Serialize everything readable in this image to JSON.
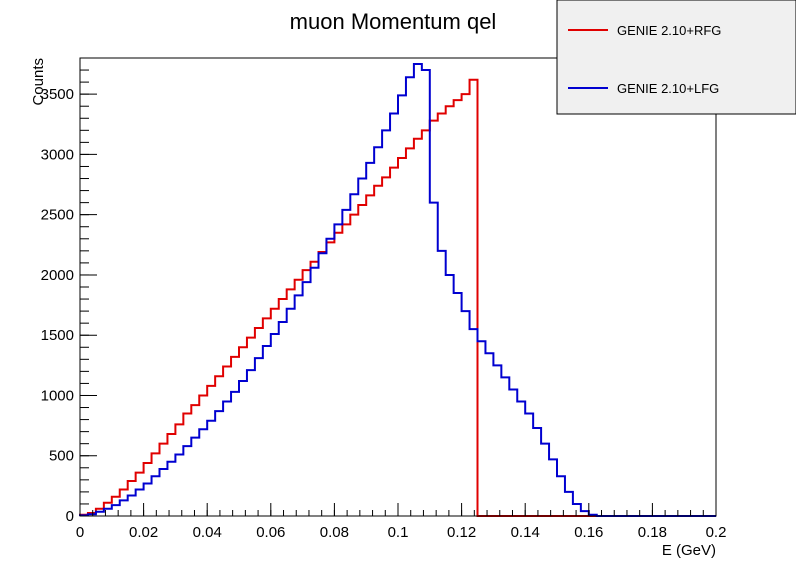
{
  "chart_data": {
    "type": "line",
    "title": "muon Momentum qel",
    "xlabel": "E (GeV)",
    "ylabel": "Counts",
    "xlim": [
      0,
      0.2
    ],
    "ylim": [
      0,
      3800
    ],
    "bin_width": 0.0025,
    "x_ticks": [
      "0",
      "0.02",
      "0.04",
      "0.06",
      "0.08",
      "0.1",
      "0.12",
      "0.14",
      "0.16",
      "0.18",
      "0.2"
    ],
    "y_ticks": [
      "0",
      "500",
      "1000",
      "1500",
      "2000",
      "2500",
      "3000",
      "3500"
    ],
    "grid": false,
    "legend_position": "top-right",
    "series": [
      {
        "name": "GENIE 2.10+RFG",
        "color": "#e00000",
        "x": [
          0.00125,
          0.00375,
          0.00625,
          0.00875,
          0.01125,
          0.01375,
          0.01625,
          0.01875,
          0.02125,
          0.02375,
          0.02625,
          0.02875,
          0.03125,
          0.03375,
          0.03625,
          0.03875,
          0.04125,
          0.04375,
          0.04625,
          0.04875,
          0.05125,
          0.05375,
          0.05625,
          0.05875,
          0.06125,
          0.06375,
          0.06625,
          0.06875,
          0.07125,
          0.07375,
          0.07625,
          0.07875,
          0.08125,
          0.08375,
          0.08625,
          0.08875,
          0.09125,
          0.09375,
          0.09625,
          0.09875,
          0.10125,
          0.10375,
          0.10625,
          0.10875,
          0.11125,
          0.11375,
          0.11625,
          0.11875,
          0.12125,
          0.12375,
          0.12625,
          0.12875,
          0.13125,
          0.13375,
          0.13625,
          0.13875,
          0.14125,
          0.14375,
          0.14625,
          0.14875,
          0.15125,
          0.15375,
          0.15625,
          0.15875,
          0.16125,
          0.16375,
          0.16625,
          0.16875,
          0.17125,
          0.17375,
          0.17625,
          0.17875,
          0.18125,
          0.18375,
          0.18625,
          0.18875,
          0.19125,
          0.19375,
          0.19625,
          0.19875
        ],
        "values": [
          10,
          25,
          60,
          110,
          160,
          220,
          290,
          360,
          440,
          520,
          600,
          680,
          760,
          850,
          920,
          1000,
          1080,
          1160,
          1240,
          1320,
          1400,
          1480,
          1560,
          1640,
          1720,
          1800,
          1880,
          1960,
          2040,
          2110,
          2190,
          2270,
          2350,
          2420,
          2500,
          2580,
          2660,
          2740,
          2810,
          2890,
          2970,
          3050,
          3130,
          3200,
          3280,
          3340,
          3400,
          3450,
          3500,
          3620,
          0,
          0,
          0,
          0,
          0,
          0,
          0,
          0,
          0,
          0,
          0,
          0,
          0,
          0,
          0,
          0,
          0,
          0,
          0,
          0,
          0,
          0,
          0,
          0,
          0,
          0,
          0,
          0,
          0,
          0
        ]
      },
      {
        "name": "GENIE 2.10+LFG",
        "color": "#0000d0",
        "x": [
          0.00125,
          0.00375,
          0.00625,
          0.00875,
          0.01125,
          0.01375,
          0.01625,
          0.01875,
          0.02125,
          0.02375,
          0.02625,
          0.02875,
          0.03125,
          0.03375,
          0.03625,
          0.03875,
          0.04125,
          0.04375,
          0.04625,
          0.04875,
          0.05125,
          0.05375,
          0.05625,
          0.05875,
          0.06125,
          0.06375,
          0.06625,
          0.06875,
          0.07125,
          0.07375,
          0.07625,
          0.07875,
          0.08125,
          0.08375,
          0.08625,
          0.08875,
          0.09125,
          0.09375,
          0.09625,
          0.09875,
          0.10125,
          0.10375,
          0.10625,
          0.10875,
          0.11125,
          0.11375,
          0.11625,
          0.11875,
          0.12125,
          0.12375,
          0.12625,
          0.12875,
          0.13125,
          0.13375,
          0.13625,
          0.13875,
          0.14125,
          0.14375,
          0.14625,
          0.14875,
          0.15125,
          0.15375,
          0.15625,
          0.15875,
          0.16125,
          0.16375,
          0.16625,
          0.16875,
          0.17125,
          0.17375,
          0.17625,
          0.17875,
          0.18125,
          0.18375,
          0.18625,
          0.18875,
          0.19125,
          0.19375,
          0.19625,
          0.19875
        ],
        "values": [
          5,
          15,
          35,
          60,
          90,
          130,
          170,
          220,
          270,
          330,
          390,
          450,
          510,
          580,
          650,
          720,
          790,
          870,
          950,
          1030,
          1120,
          1210,
          1310,
          1410,
          1510,
          1610,
          1720,
          1830,
          1940,
          2060,
          2180,
          2300,
          2420,
          2540,
          2670,
          2800,
          2930,
          3060,
          3200,
          3340,
          3490,
          3640,
          3750,
          3700,
          2600,
          2200,
          2000,
          1850,
          1700,
          1550,
          1450,
          1350,
          1250,
          1150,
          1050,
          950,
          850,
          730,
          600,
          470,
          330,
          200,
          100,
          40,
          10,
          0,
          0,
          0,
          0,
          0,
          0,
          0,
          0,
          0,
          0,
          0,
          0,
          0,
          0,
          0
        ]
      }
    ]
  }
}
